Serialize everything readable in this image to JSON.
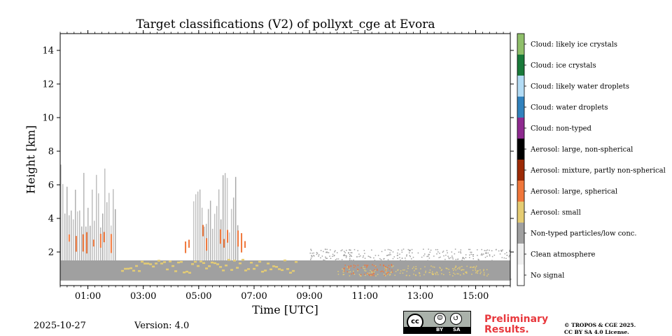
{
  "chart_data": {
    "type": "heatmap",
    "title": "Target classifications (V2) of pollyxt_cge at Evora",
    "xlabel": "Time [UTC]",
    "ylabel": "Height [km]",
    "xlim": [
      0.0,
      16.25
    ],
    "ylim": [
      0.0,
      15.0
    ],
    "x_tick_values": [
      1,
      3,
      5,
      7,
      9,
      11,
      13,
      15
    ],
    "x_tick_labels": [
      "01:00",
      "03:00",
      "05:00",
      "07:00",
      "09:00",
      "11:00",
      "13:00",
      "15:00"
    ],
    "y_ticks": [
      2,
      4,
      6,
      8,
      10,
      12,
      14
    ],
    "classes": [
      {
        "label": "No signal",
        "color": "#ffffff"
      },
      {
        "label": "Clean atmosphere",
        "color": "#f0f0f0"
      },
      {
        "label": "Non-typed particles/low conc.",
        "color": "#a0a0a0"
      },
      {
        "label": "Aerosol: small",
        "color": "#e5cc73"
      },
      {
        "label": "Aerosol: large, spherical",
        "color": "#f0773b"
      },
      {
        "label": "Aerosol: mixture, partly non-spherical",
        "color": "#9c2a05"
      },
      {
        "label": "Aerosol: large, non-spherical",
        "color": "#000000"
      },
      {
        "label": "Cloud: non-typed",
        "color": "#8e2a8f"
      },
      {
        "label": "Cloud: water droplets",
        "color": "#3182bd"
      },
      {
        "label": "Cloud: likely water droplets",
        "color": "#b3dcf5"
      },
      {
        "label": "Cloud: ice crystals",
        "color": "#1a7a3a"
      },
      {
        "label": "Cloud: likely ice crystals",
        "color": "#8fbf6a"
      }
    ],
    "regions": [
      {
        "class": "Non-typed particles/low conc.",
        "x": [
          0.0,
          16.25
        ],
        "y": [
          0.3,
          1.5
        ]
      },
      {
        "class": "Non-typed particles/low conc.",
        "x": [
          0.0,
          2.0
        ],
        "y": [
          1.5,
          7.2
        ],
        "pattern": "columns"
      },
      {
        "class": "Non-typed particles/low conc.",
        "x": [
          4.8,
          6.4
        ],
        "y": [
          1.5,
          7.0
        ],
        "pattern": "columns"
      },
      {
        "class": "Non-typed particles/low conc.",
        "x": [
          9.0,
          16.25
        ],
        "y": [
          0.4,
          2.2
        ],
        "pattern": "sparse"
      },
      {
        "class": "Aerosol: small",
        "x": [
          2.2,
          8.5
        ],
        "y": [
          0.8,
          1.6
        ],
        "pattern": "layer"
      },
      {
        "class": "Aerosol: small",
        "x": [
          10.0,
          15.5
        ],
        "y": [
          0.6,
          1.2
        ],
        "pattern": "sparse"
      },
      {
        "class": "Aerosol: large, spherical",
        "x": [
          0.3,
          2.0
        ],
        "y": [
          1.7,
          3.2
        ],
        "pattern": "streaks"
      },
      {
        "class": "Aerosol: large, spherical",
        "x": [
          4.5,
          6.8
        ],
        "y": [
          1.8,
          3.7
        ],
        "pattern": "streaks"
      },
      {
        "class": "Aerosol: large, spherical",
        "x": [
          10.2,
          12.0
        ],
        "y": [
          0.6,
          1.3
        ],
        "pattern": "sparse"
      }
    ]
  },
  "footer": {
    "date": "2025-10-27",
    "version": "Version: 4.0",
    "preliminary_line1": "Preliminary",
    "preliminary_line2": "Results.",
    "license_line1": "© TROPOS & CGE 2025.",
    "license_line2": "CC BY SA 4.0 License.",
    "cc_text": "cc",
    "by_text": "BY",
    "sa_text": "SA"
  },
  "colors": {
    "preliminary": "#e8383d"
  }
}
